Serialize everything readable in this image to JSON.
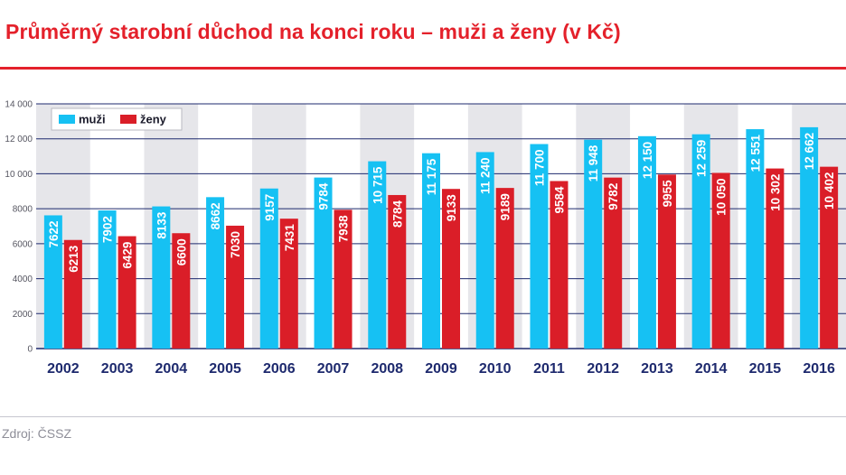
{
  "title": "Průměrný starobní důchod na konci roku – muži a ženy (v Kč)",
  "source": "Zdroj: ČSSZ",
  "colors": {
    "accent": "#e4212b",
    "muzi": "#16c1f3",
    "zeny": "#da1e28",
    "grid": "#1e2a6e",
    "band": "#e6e6ea",
    "year_text": "#1e2a6e"
  },
  "chart_data": {
    "type": "bar",
    "title": "Průměrný starobní důchod na konci roku – muži a ženy (v Kč)",
    "categories": [
      "2002",
      "2003",
      "2004",
      "2005",
      "2006",
      "2007",
      "2008",
      "2009",
      "2010",
      "2011",
      "2012",
      "2013",
      "2014",
      "2015",
      "2016"
    ],
    "series": [
      {
        "name": "muži",
        "color": "#16c1f3",
        "values": [
          7622,
          7902,
          8133,
          8662,
          9157,
          9784,
          10715,
          11175,
          11240,
          11700,
          11948,
          12150,
          12259,
          12551,
          12662
        ],
        "labels": [
          "7622",
          "7902",
          "8133",
          "8662",
          "9157",
          "9784",
          "10 715",
          "11 175",
          "11 240",
          "11 700",
          "11 948",
          "12 150",
          "12 259",
          "12 551",
          "12 662"
        ]
      },
      {
        "name": "ženy",
        "color": "#da1e28",
        "values": [
          6213,
          6429,
          6600,
          7030,
          7431,
          7938,
          8784,
          9133,
          9189,
          9584,
          9782,
          9955,
          10050,
          10302,
          10402
        ],
        "labels": [
          "6213",
          "6429",
          "6600",
          "7030",
          "7431",
          "7938",
          "8784",
          "9133",
          "9189",
          "9584",
          "9782",
          "9955",
          "10 050",
          "10 302",
          "10 402"
        ]
      }
    ],
    "ylim": [
      0,
      14000
    ],
    "yticks": [
      0,
      2000,
      4000,
      6000,
      8000,
      10000,
      12000,
      14000
    ],
    "ytick_labels": [
      "0",
      "2000",
      "4000",
      "6000",
      "8000",
      "10 000",
      "12 000",
      "14 000"
    ],
    "xlabel": "",
    "ylabel": "",
    "grid": true,
    "legend": "top-left"
  }
}
